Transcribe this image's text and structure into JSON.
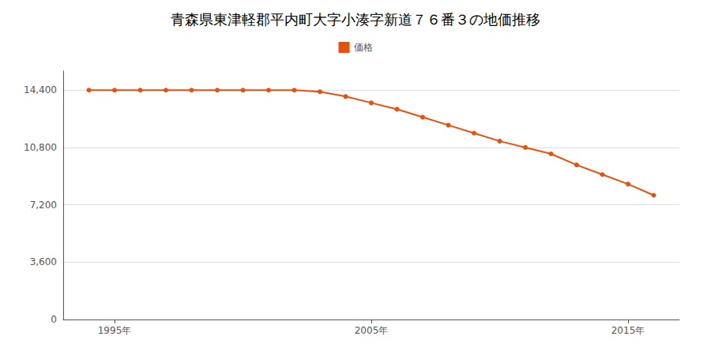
{
  "chart_data": {
    "type": "line",
    "title": "青森県東津軽郡平内町大字小湊字新道７６番３の地価推移",
    "x": [
      1994,
      1995,
      1996,
      1997,
      1998,
      1999,
      2000,
      2001,
      2002,
      2003,
      2004,
      2005,
      2006,
      2007,
      2008,
      2009,
      2010,
      2011,
      2012,
      2013,
      2014,
      2015,
      2016
    ],
    "series": [
      {
        "name": "価格",
        "color": "#E8510A",
        "marker": "circle",
        "values": [
          14400,
          14400,
          14400,
          14400,
          14400,
          14400,
          14400,
          14400,
          14400,
          14300,
          14000,
          13600,
          13200,
          12700,
          12200,
          11700,
          11200,
          10800,
          10400,
          9700,
          9100,
          8500,
          7800
        ]
      }
    ],
    "xlim": [
      1993,
      2017
    ],
    "xticks": [
      {
        "value": 1995,
        "label": "1995年"
      },
      {
        "value": 2005,
        "label": "2005年"
      },
      {
        "value": 2015,
        "label": "2015年"
      }
    ],
    "ylim": [
      0,
      15600
    ],
    "yticks": [
      0,
      {
        "value": 3600,
        "label": "3,600"
      },
      {
        "value": 7200,
        "label": "7,200"
      },
      {
        "value": 10800,
        "label": "10,800"
      },
      {
        "value": 14400,
        "label": "14,400"
      }
    ],
    "grid": true,
    "legend": "top"
  }
}
